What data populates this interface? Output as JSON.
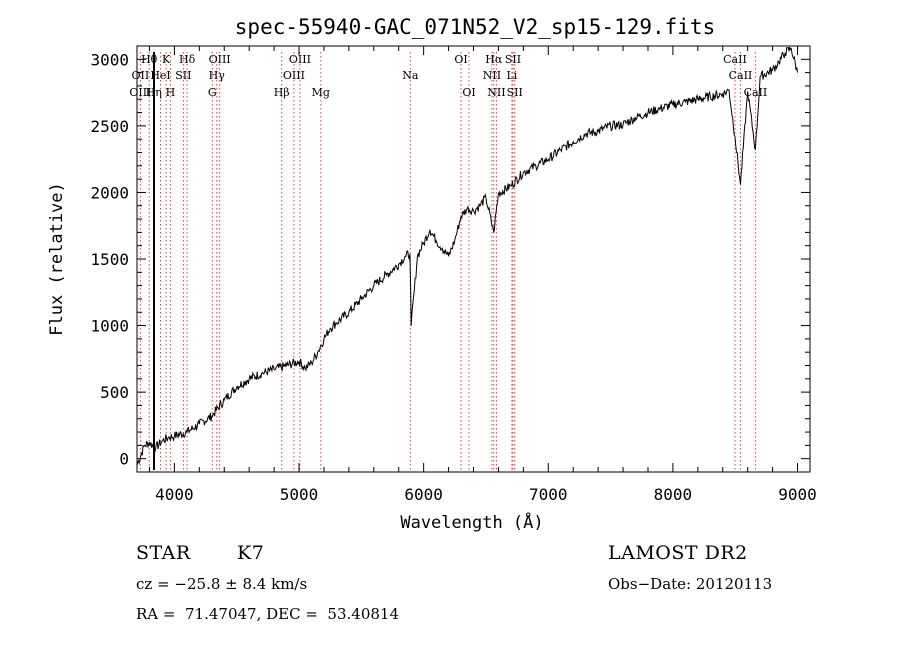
{
  "chart_data": {
    "type": "line",
    "title": "spec-55940-GAC_071N52_V2_sp15-129.fits",
    "xlabel": "Wavelength (Å)",
    "ylabel": "Flux (relative)",
    "xlim": [
      3700,
      9100
    ],
    "ylim": [
      -100,
      3100
    ],
    "x_ticks": [
      4000,
      5000,
      6000,
      7000,
      8000,
      9000
    ],
    "y_ticks": [
      0,
      500,
      1000,
      1500,
      2000,
      2500,
      3000
    ],
    "series": [
      {
        "name": "spectrum",
        "x": [
          3700,
          3760,
          3800,
          3850,
          3900,
          3950,
          4000,
          4100,
          4200,
          4300,
          4400,
          4500,
          4600,
          4700,
          4800,
          4900,
          5000,
          5050,
          5100,
          5150,
          5200,
          5250,
          5300,
          5400,
          5500,
          5600,
          5700,
          5800,
          5850,
          5890,
          5900,
          5950,
          6000,
          6050,
          6100,
          6150,
          6200,
          6250,
          6300,
          6350,
          6400,
          6450,
          6500,
          6562,
          6600,
          6700,
          6800,
          6900,
          7000,
          7100,
          7200,
          7300,
          7400,
          7500,
          7600,
          7700,
          7800,
          7900,
          8000,
          8100,
          8200,
          8300,
          8400,
          8450,
          8498,
          8542,
          8600,
          8662,
          8700,
          8800,
          8850,
          8900,
          8950,
          9000
        ],
        "y": [
          -50,
          100,
          120,
          80,
          130,
          160,
          170,
          200,
          260,
          320,
          440,
          540,
          600,
          640,
          670,
          700,
          730,
          680,
          720,
          800,
          900,
          980,
          1020,
          1100,
          1200,
          1300,
          1380,
          1460,
          1520,
          1540,
          1000,
          1520,
          1620,
          1720,
          1640,
          1580,
          1520,
          1640,
          1820,
          1880,
          1860,
          1900,
          1960,
          1700,
          1990,
          2050,
          2150,
          2200,
          2250,
          2320,
          2380,
          2440,
          2460,
          2500,
          2510,
          2560,
          2600,
          2630,
          2660,
          2680,
          2700,
          2720,
          2740,
          2770,
          2420,
          2060,
          2760,
          2320,
          2870,
          2920,
          2980,
          3050,
          3080,
          2900
        ],
        "color": "#000000"
      }
    ],
    "spectral_lines": [
      {
        "label": "Hθ",
        "x": 3798,
        "row": 0
      },
      {
        "label": "OII",
        "x": 3727,
        "row": 1
      },
      {
        "label": "OIII",
        "x": 3727,
        "row": 2
      },
      {
        "label": "K",
        "x": 3934,
        "row": 0
      },
      {
        "label": "HeI",
        "x": 3889,
        "row": 1
      },
      {
        "label": "SII",
        "x": 4072,
        "row": 1
      },
      {
        "label": "Hη",
        "x": 3835,
        "row": 2
      },
      {
        "label": "H",
        "x": 3968,
        "row": 2
      },
      {
        "label": "Hδ",
        "x": 4102,
        "row": 0
      },
      {
        "label": "OIII",
        "x": 4363,
        "row": 0
      },
      {
        "label": "Hγ",
        "x": 4340,
        "row": 1
      },
      {
        "label": "G",
        "x": 4304,
        "row": 2
      },
      {
        "label": "OIII",
        "x": 5007,
        "row": 0
      },
      {
        "label": "OIII",
        "x": 4959,
        "row": 1
      },
      {
        "label": "Hβ",
        "x": 4861,
        "row": 2
      },
      {
        "label": "Mg",
        "x": 5175,
        "row": 2
      },
      {
        "label": "Na",
        "x": 5893,
        "row": 1
      },
      {
        "label": "OI",
        "x": 6300,
        "row": 0
      },
      {
        "label": "OI",
        "x": 6364,
        "row": 2
      },
      {
        "label": "Hα",
        "x": 6563,
        "row": 0
      },
      {
        "label": "SII",
        "x": 6717,
        "row": 0
      },
      {
        "label": "NII",
        "x": 6548,
        "row": 1
      },
      {
        "label": "Li",
        "x": 6708,
        "row": 1
      },
      {
        "label": "NII",
        "x": 6584,
        "row": 2
      },
      {
        "label": "SII",
        "x": 6731,
        "row": 2
      },
      {
        "label": "CaII",
        "x": 8498,
        "row": 0
      },
      {
        "label": "CaII",
        "x": 8542,
        "row": 1
      },
      {
        "label": "CaII",
        "x": 8662,
        "row": 2
      }
    ]
  },
  "info": {
    "class": "STAR",
    "subclass": "K7",
    "survey": "LAMOST DR2",
    "velocity": "cz = −25.8 ± 8.4 km/s",
    "obs_date": "Obs−Date: 20120113",
    "coords": "RA =  71.47047, DEC =  53.40814"
  }
}
